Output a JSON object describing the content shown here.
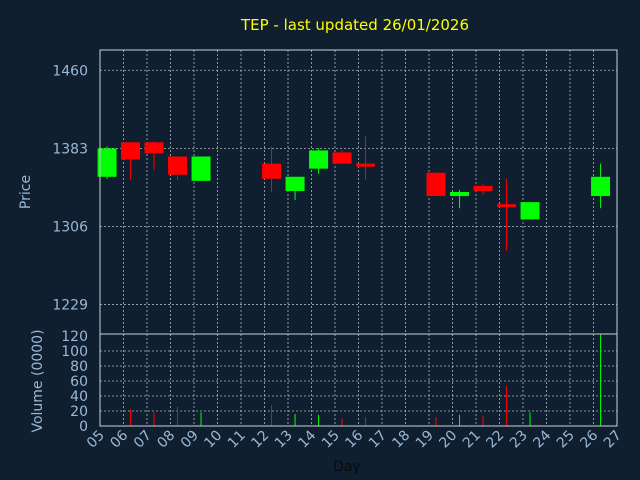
{
  "chart_data": [
    {
      "type": "candlestick",
      "title": "TEP - last updated 26/01/2026",
      "ylabel": "Price",
      "ylim": [
        1200,
        1480
      ],
      "yticks": [
        1460,
        1383,
        1306,
        1229
      ],
      "candles": [
        {
          "day": 5.3,
          "open": 1355,
          "high": 1385,
          "low": 1353,
          "close": 1383
        },
        {
          "day": 6.3,
          "open": 1389,
          "high": 1389,
          "low": 1352,
          "close": 1372
        },
        {
          "day": 7.3,
          "open": 1389,
          "high": 1390,
          "low": 1362,
          "close": 1378
        },
        {
          "day": 8.3,
          "open": 1375,
          "high": 1375,
          "low": 1352,
          "close": 1357
        },
        {
          "day": 9.3,
          "open": 1351,
          "high": 1375,
          "low": 1351,
          "close": 1375
        },
        {
          "day": 12.3,
          "open": 1368,
          "high": 1385,
          "low": 1340,
          "close": 1353
        },
        {
          "day": 13.3,
          "open": 1341,
          "high": 1355,
          "low": 1332,
          "close": 1355
        },
        {
          "day": 14.3,
          "open": 1363,
          "high": 1383,
          "low": 1358,
          "close": 1381
        },
        {
          "day": 15.3,
          "open": 1379,
          "high": 1381,
          "low": 1368,
          "close": 1368
        },
        {
          "day": 16.3,
          "open": 1368,
          "high": 1395,
          "low": 1352,
          "close": 1365
        },
        {
          "day": 19.3,
          "open": 1359,
          "high": 1359,
          "low": 1336,
          "close": 1336
        },
        {
          "day": 20.3,
          "open": 1336,
          "high": 1342,
          "low": 1324,
          "close": 1340
        },
        {
          "day": 21.3,
          "open": 1346,
          "high": 1348,
          "low": 1337,
          "close": 1341
        },
        {
          "day": 22.3,
          "open": 1328,
          "high": 1353,
          "low": 1282,
          "close": 1325
        },
        {
          "day": 23.3,
          "open": 1313,
          "high": 1330,
          "low": 1313,
          "close": 1330
        },
        {
          "day": 26.3,
          "open": 1336,
          "high": 1368,
          "low": 1324,
          "close": 1355
        }
      ],
      "up_color": "#00ff00",
      "down_color": "#ff0000",
      "grid": true
    },
    {
      "type": "bar",
      "ylabel": "Volume (0000)",
      "xlabel": "Day",
      "ylim": [
        0,
        120
      ],
      "yticks": [
        0,
        20,
        40,
        60,
        80,
        100,
        120
      ],
      "x_ticks": [
        "05",
        "06",
        "07",
        "08",
        "09",
        "10",
        "11",
        "12",
        "13",
        "14",
        "15",
        "16",
        "17",
        "18",
        "19",
        "20",
        "21",
        "22",
        "23",
        "24",
        "25",
        "26",
        "27"
      ],
      "bars": [
        {
          "day": 6.3,
          "value": 22,
          "dir": "down"
        },
        {
          "day": 7.3,
          "value": 18,
          "dir": "down"
        },
        {
          "day": 8.3,
          "value": 26,
          "dir": "down"
        },
        {
          "day": 9.3,
          "value": 18,
          "dir": "up"
        },
        {
          "day": 12.3,
          "value": 28,
          "dir": "down"
        },
        {
          "day": 13.3,
          "value": 16,
          "dir": "up"
        },
        {
          "day": 14.3,
          "value": 15,
          "dir": "up"
        },
        {
          "day": 15.3,
          "value": 10,
          "dir": "down"
        },
        {
          "day": 16.3,
          "value": 12,
          "dir": "down"
        },
        {
          "day": 19.3,
          "value": 12,
          "dir": "down"
        },
        {
          "day": 20.3,
          "value": 15,
          "dir": "up"
        },
        {
          "day": 21.3,
          "value": 14,
          "dir": "down"
        },
        {
          "day": 22.3,
          "value": 53,
          "dir": "down"
        },
        {
          "day": 23.3,
          "value": 18,
          "dir": "up"
        },
        {
          "day": 26.3,
          "value": 122,
          "dir": "up"
        }
      ]
    }
  ]
}
